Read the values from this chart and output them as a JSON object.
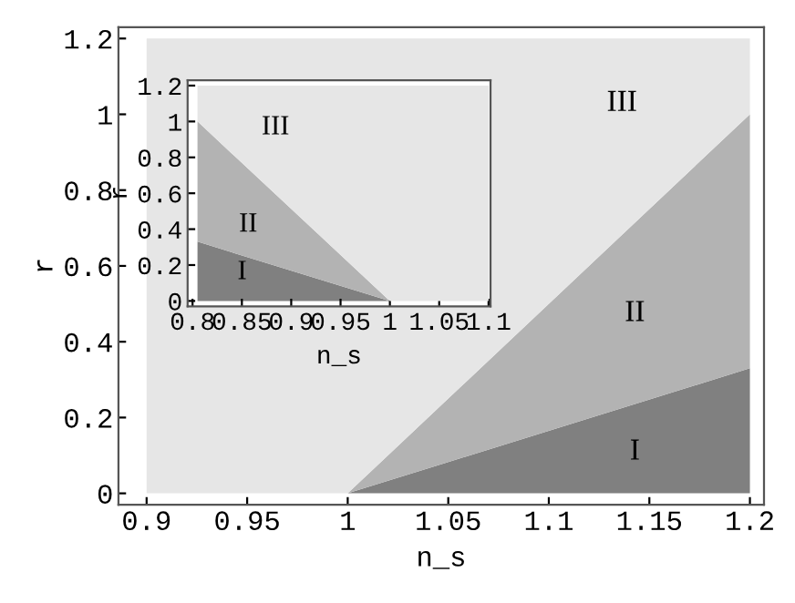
{
  "chart_data": [
    {
      "type": "area",
      "stacked": true,
      "xlabel": "n_s",
      "ylabel": "r",
      "x": [
        0.9,
        1,
        1.2
      ],
      "series": [
        {
          "color": "#808080",
          "values": [
            0,
            0,
            0.33
          ]
        },
        {
          "color": "#b3b3b3",
          "values": [
            0,
            0,
            0.67
          ]
        },
        {
          "color": "#e6e6e6",
          "values": [
            1.2,
            1.2,
            0.2
          ]
        }
      ],
      "xlim": [
        0.886,
        1.207
      ],
      "ylim": [
        -0.03,
        1.23
      ],
      "xticks": [
        0.9,
        0.95,
        1,
        1.05,
        1.1,
        1.15,
        1.2
      ],
      "yticks": [
        0,
        0.2,
        0.4,
        0.6,
        0.8,
        1,
        1.2
      ],
      "grid": false,
      "legend": false,
      "annotations": [
        "III",
        "II",
        "I"
      ]
    },
    {
      "type": "area",
      "stacked": true,
      "xlabel": "n_s",
      "ylabel": "r",
      "x": [
        0.805,
        1,
        1.1
      ],
      "series": [
        {
          "color": "#808080",
          "values": [
            0.33,
            0,
            0
          ]
        },
        {
          "color": "#b3b3b3",
          "values": [
            0.67,
            0,
            0
          ]
        },
        {
          "color": "#e6e6e6",
          "values": [
            0.2,
            1.2,
            1.2
          ]
        }
      ],
      "xlim": [
        0.795,
        1.102
      ],
      "ylim": [
        -0.03,
        1.23
      ],
      "xticks": [
        0.8,
        0.85,
        0.9,
        0.95,
        1,
        1.05,
        1.1
      ],
      "yticks": [
        0,
        0.2,
        0.4,
        0.6,
        0.8,
        1,
        1.2
      ],
      "grid": false,
      "legend": false,
      "annotations": [
        "III",
        "II",
        "I"
      ]
    }
  ]
}
